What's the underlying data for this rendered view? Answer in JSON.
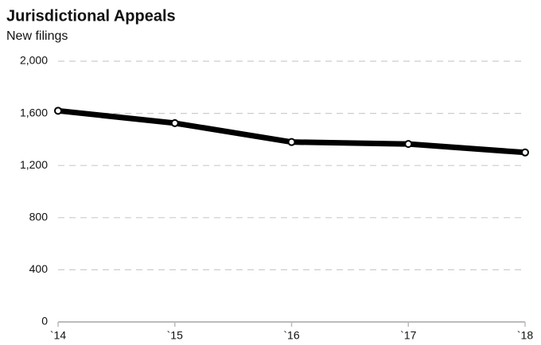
{
  "chart_data": {
    "type": "line",
    "title": "Jurisdictional Appeals",
    "subtitle": "New filings",
    "categories": [
      "`14",
      "`15",
      "`16",
      "`17",
      "`18"
    ],
    "series": [
      {
        "name": "New filings",
        "color": "#000000",
        "values": [
          1620,
          1525,
          1380,
          1365,
          1300
        ]
      }
    ],
    "ylim": [
      0,
      2000
    ],
    "yticks": [
      0,
      400,
      800,
      {
        "value": 1200,
        "label": "1,200"
      },
      {
        "value": 1600,
        "label": "1,600"
      },
      {
        "value": 2000,
        "label": "2,000"
      }
    ],
    "grid": true
  }
}
